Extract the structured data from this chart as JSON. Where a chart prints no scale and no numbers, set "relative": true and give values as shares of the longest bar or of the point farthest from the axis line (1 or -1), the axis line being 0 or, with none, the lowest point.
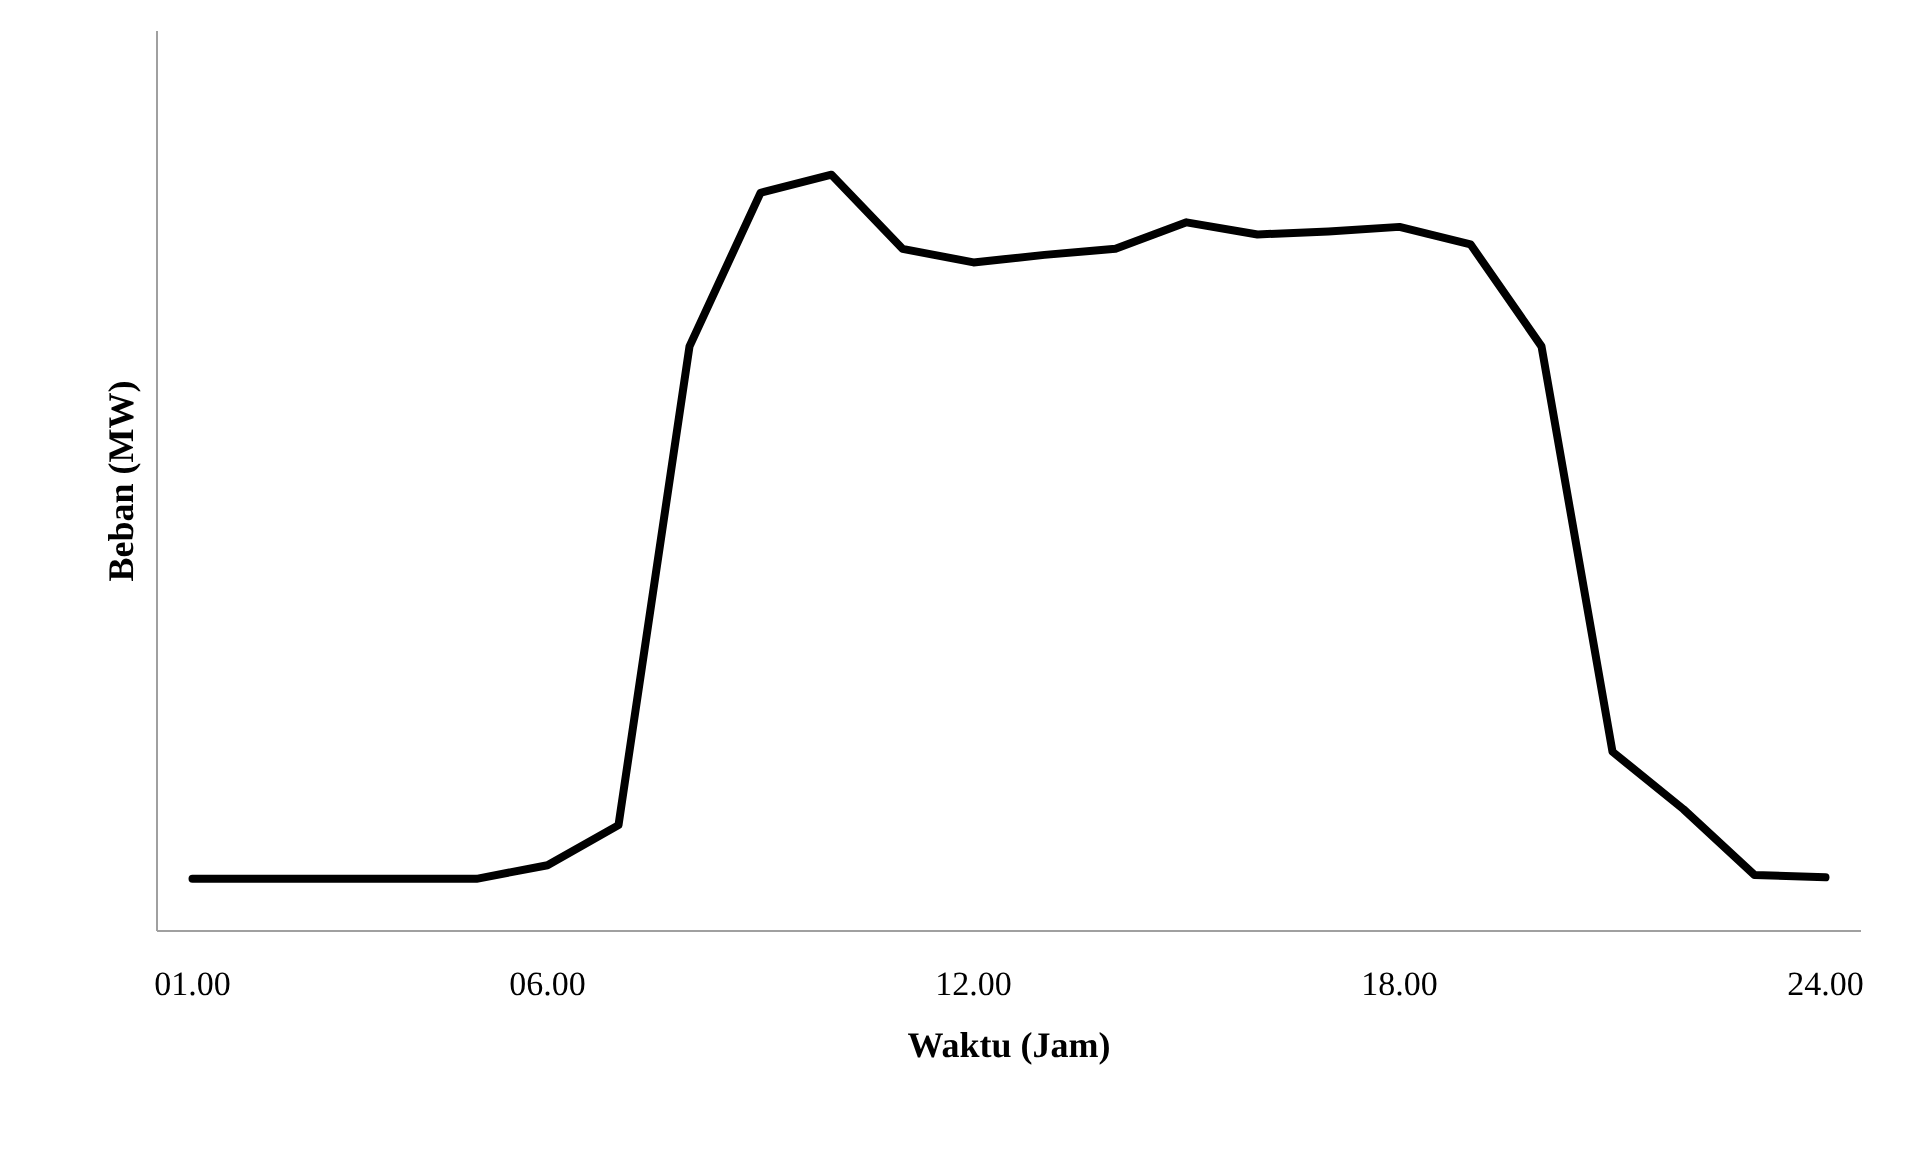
{
  "chart_data": {
    "type": "line",
    "relative": true,
    "xlabel": "Waktu (Jam)",
    "ylabel": "Beban (MW)",
    "categories": [
      "01.00",
      null,
      null,
      null,
      null,
      "06.00",
      null,
      null,
      null,
      null,
      null,
      "12.00",
      null,
      null,
      null,
      null,
      null,
      "18.00",
      null,
      null,
      null,
      null,
      null,
      "24.00"
    ],
    "series": [
      {
        "color": "#000000",
        "values": [
          0.069,
          0.069,
          0.069,
          0.069,
          0.069,
          0.087,
          0.14,
          0.773,
          0.976,
          1,
          0.902,
          0.884,
          0.894,
          0.902,
          0.937,
          0.921,
          0.925,
          0.931,
          0.908,
          0.773,
          0.237,
          0.161,
          0.074,
          0.071
        ]
      }
    ],
    "marker": "none",
    "line_style": "solid"
  }
}
